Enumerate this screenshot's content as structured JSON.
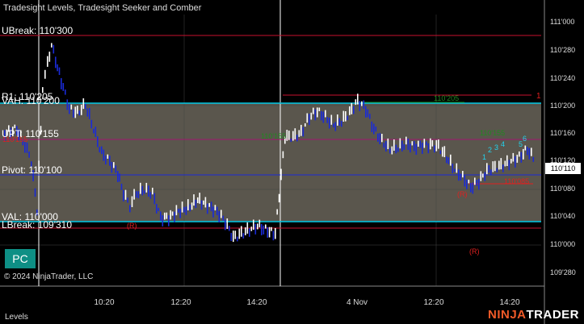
{
  "window": {
    "title": "Tradesight Levels, Tradesight Seeker and Comber"
  },
  "levels": {
    "ubreak": "UBreak: 110'300",
    "r1": "R1: 110'205",
    "vah": "VAH: 110'200",
    "upt": "UPT: 110'155",
    "pivot": "Pivot: 110'100",
    "val": "VAL: 110'000",
    "lbreak": "LBreak: 109'310"
  },
  "price_axis": [
    "111'000",
    "110'280",
    "110'240",
    "110'200",
    "110'160",
    "110'120",
    "110'080",
    "110'040",
    "110'000",
    "109'280"
  ],
  "current_price": "110'110",
  "time_axis": [
    "10:20",
    "12:20",
    "14:20",
    "4 Nov",
    "12:20",
    "14:20"
  ],
  "annotations": {
    "marker_top": "1",
    "label_a": "110'205",
    "label_b": "110'155",
    "label_c": "110'155",
    "label_d": "110'155",
    "label_e": "110'085",
    "r_label": "(R)",
    "count_labels": [
      "1",
      "2",
      "3",
      "4",
      "5",
      "6"
    ]
  },
  "buttons": {
    "pc": "PC"
  },
  "footer": {
    "copyright": "© 2024 NinjaTrader, LLC",
    "tab": "Levels",
    "brand_a": "NINJA",
    "brand_b": "TRADER"
  },
  "colors": {
    "background": "#000000",
    "value_area": "#5a564d",
    "up_bar": "#ffffff",
    "down_bar": "#1a2bd8",
    "break_line": "#c8102e",
    "pivot_line": "#1a2bd8",
    "va_line": "#00c8e6",
    "upt_line": "#a0166e",
    "signal_green": "#1f8a1f",
    "signal_red": "#e02020",
    "signal_cyan": "#22d3ee",
    "accent": "#f05a28"
  }
}
